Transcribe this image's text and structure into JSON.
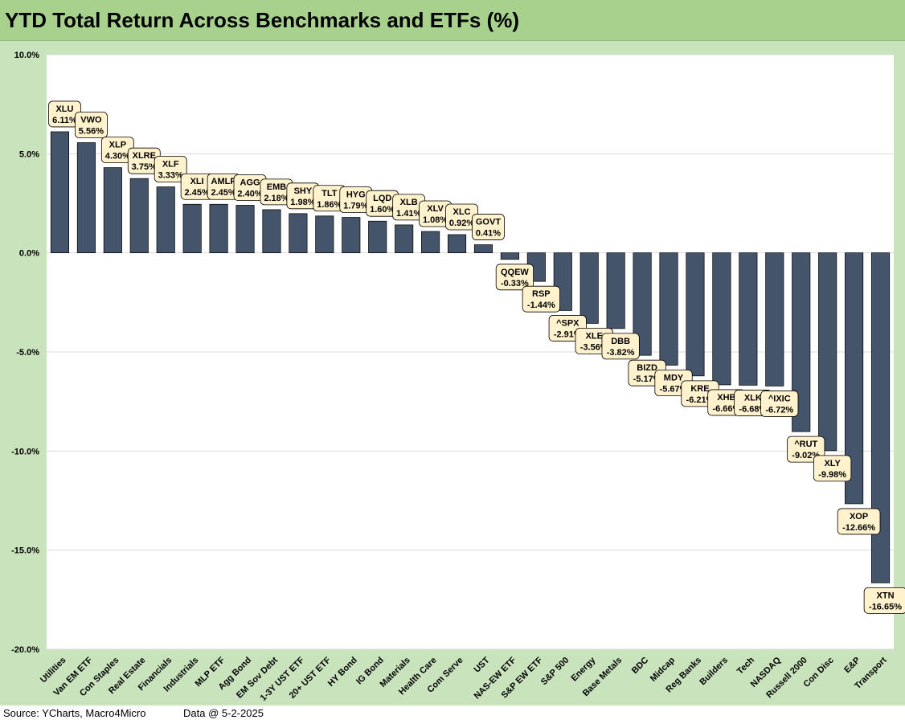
{
  "title": "YTD Total Return Across Benchmarks and ETFs (%)",
  "footer": {
    "source": "Source: YCharts, Macro4Micro",
    "data_date": "Data @ 5-2-2025"
  },
  "colors": {
    "background": "#c9e3bc",
    "title_band": "#a9d18e",
    "plot_area": "#ffffff",
    "bar": "#44546a",
    "label_box": "#fff2cc"
  },
  "chart_data": {
    "type": "bar",
    "title": "YTD Total Return Across Benchmarks and ETFs (%)",
    "xlabel": "",
    "ylabel": "",
    "ylim": [
      -20,
      10
    ],
    "yticks": [
      10,
      5,
      0,
      -5,
      -10,
      -15,
      -20
    ],
    "ytick_labels": [
      "10.0%",
      "5.0%",
      "0.0%",
      "-5.0%",
      "-10.0%",
      "-15.0%",
      "-20.0%"
    ],
    "grid": true,
    "legend": false,
    "categories": [
      "Utilities",
      "Van EM ETF",
      "Con Staples",
      "Real Estate",
      "Financials",
      "Industrials",
      "MLP ETF",
      "Agg Bond",
      "EM Sov Debt",
      "1-3Y UST ETF",
      "20+ UST ETF",
      "HY Bond",
      "IG Bond",
      "Materials",
      "Health Care",
      "Com Serve",
      "UST",
      "NAS-EW ETF",
      "S&P EW ETF",
      "S&P 500",
      "Energy",
      "Base Metals",
      "BDC",
      "Midcap",
      "Reg Banks",
      "Builders",
      "Tech",
      "NASDAQ",
      "Russell 2000",
      "Con Disc",
      "E&P",
      "Transport"
    ],
    "tickers": [
      "XLU",
      "VWO",
      "XLP",
      "XLRE",
      "XLF",
      "XLI",
      "AMLP",
      "AGG",
      "EMB",
      "SHY",
      "TLT",
      "HYG",
      "LQD",
      "XLB",
      "XLV",
      "XLC",
      "GOVT",
      "QQEW",
      "RSP",
      "^SPX",
      "XLE",
      "DBB",
      "BIZD",
      "MDY",
      "KRE",
      "XHB",
      "XLK",
      "^IXIC",
      "^RUT",
      "XLY",
      "XOP",
      "XTN"
    ],
    "values": [
      6.11,
      5.56,
      4.3,
      3.75,
      3.33,
      2.45,
      2.45,
      2.4,
      2.18,
      1.98,
      1.86,
      1.79,
      1.6,
      1.41,
      1.08,
      0.92,
      0.41,
      -0.33,
      -1.44,
      -2.91,
      -3.56,
      -3.82,
      -5.17,
      -5.67,
      -6.21,
      -6.66,
      -6.68,
      -6.72,
      -9.02,
      -9.98,
      -12.66,
      -16.65
    ],
    "data_labels": [
      "6.11%",
      "5.56%",
      "4.30%",
      "3.75%",
      "3.33%",
      "2.45%",
      "2.45%",
      "2.40%",
      "2.18%",
      "1.98%",
      "1.86%",
      "1.79%",
      "1.60%",
      "1.41%",
      "1.08%",
      "0.92%",
      "0.41%",
      "-0.33%",
      "-1.44%",
      "-2.91%",
      "-3.56%",
      "-3.82%",
      "-5.17%",
      "-5.67%",
      "-6.21%",
      "-6.66%",
      "-6.68%",
      "-6.72%",
      "-9.02%",
      "-9.98%",
      "-12.66%",
      "-16.65%"
    ]
  }
}
